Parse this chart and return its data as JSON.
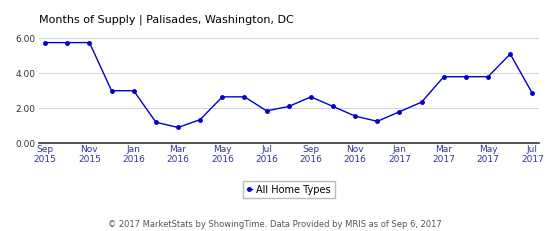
{
  "title": "Months of Supply | Palisades, Washington, DC",
  "x_tick_labels": [
    "Sep\n2015",
    "Nov\n2015",
    "Jan\n2016",
    "Mar\n2016",
    "May\n2016",
    "Jul\n2016",
    "Sep\n2016",
    "Nov\n2016",
    "Jan\n2017",
    "Mar\n2017",
    "May\n2017",
    "Jul\n2017"
  ],
  "x_tick_positions": [
    0,
    2,
    4,
    6,
    8,
    10,
    12,
    14,
    16,
    18,
    20,
    22
  ],
  "x_data": [
    0,
    1,
    2,
    3,
    4,
    5,
    6,
    7,
    8,
    9,
    10,
    11,
    12,
    13,
    14,
    15,
    16,
    17,
    18,
    19,
    20,
    21,
    22
  ],
  "y_data": [
    5.75,
    5.75,
    5.75,
    3.0,
    3.0,
    1.2,
    0.9,
    1.35,
    2.65,
    2.65,
    1.85,
    2.1,
    2.65,
    2.1,
    1.55,
    1.25,
    1.8,
    2.35,
    3.8,
    3.8,
    3.8,
    5.1,
    2.85
  ],
  "line_color": "#0000cc",
  "marker_color": "#0000cc",
  "ylim": [
    0.0,
    6.6
  ],
  "yticks": [
    0.0,
    2.0,
    4.0,
    6.0
  ],
  "ytick_labels": [
    "0.00",
    "2.00",
    "4.00",
    "6.00"
  ],
  "legend_label": "All Home Types",
  "footer": "© 2017 MarketStats by ShowingTime. Data Provided by MRIS as of Sep 6, 2017",
  "title_fontsize": 8,
  "axis_tick_fontsize": 6.5,
  "legend_fontsize": 7,
  "footer_fontsize": 6,
  "background_color": "#ffffff",
  "grid_color": "#cccccc",
  "bottom_spine_color": "#333333",
  "tick_label_color": "#333399"
}
